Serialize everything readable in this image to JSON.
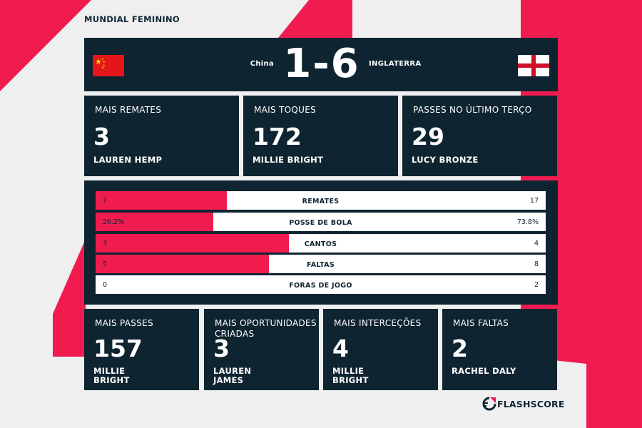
{
  "competition": "MUNDIAL FEMININO",
  "match": {
    "home_team": "China",
    "away_team": "INGLATERRA",
    "score": "1-6",
    "home_flag_icon": "china-flag-icon",
    "away_flag_icon": "england-flag-icon"
  },
  "top_stats": [
    {
      "label": "MAIS REMATES",
      "value": "3",
      "player": "LAUREN HEMP"
    },
    {
      "label": "MAIS TOQUES",
      "value": "172",
      "player": "MILLIE BRIGHT"
    },
    {
      "label": "PASSES NO ÚLTIMO TERÇO",
      "value": "29",
      "player": "LUCY BRONZE"
    }
  ],
  "comparison": [
    {
      "name": "REMATES",
      "home": "7",
      "away": "17",
      "home_share": 0.292
    },
    {
      "name": "POSSE DE BOLA",
      "home": "26.2%",
      "away": "73.8%",
      "home_share": 0.262
    },
    {
      "name": "CANTOS",
      "home": "3",
      "away": "4",
      "home_share": 0.429
    },
    {
      "name": "FALTAS",
      "home": "5",
      "away": "8",
      "home_share": 0.385
    },
    {
      "name": "FORAS DE JOGO",
      "home": "0",
      "away": "2",
      "home_share": 0
    }
  ],
  "bottom_stats": [
    {
      "label": "MAIS PASSES",
      "value": "157",
      "player": "MILLIE\nBRIGHT"
    },
    {
      "label": "MAIS OPORTUNIDADES\nCRIADAS",
      "value": "3",
      "player": "LAUREN\nJAMES"
    },
    {
      "label": "MAIS INTERCEÇÕES",
      "value": "4",
      "player": "MILLIE\nBRIGHT"
    },
    {
      "label": "MAIS FALTAS",
      "value": "2",
      "player": "RACHEL DALY"
    }
  ],
  "brand": {
    "name": "FLASHSCORE",
    "icon": "flashscore-logo-icon"
  },
  "colors": {
    "accent": "#f01c50",
    "panel": "#0f2431",
    "background": "#f0eff0"
  }
}
